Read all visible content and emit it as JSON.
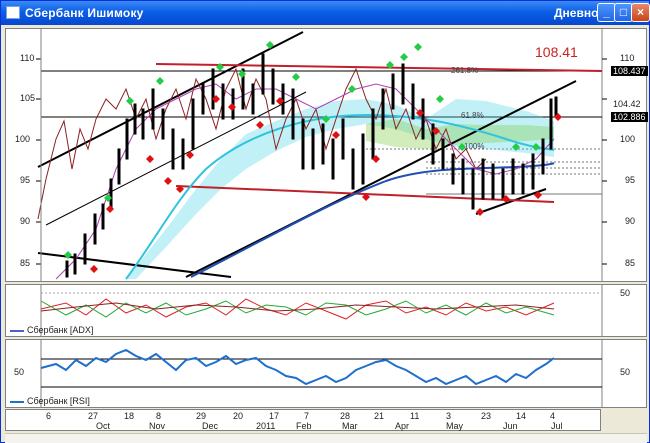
{
  "window": {
    "title": "Сбербанк Ишимоку",
    "timeframe": "Дневной",
    "buttons": {
      "minimize": "_",
      "maximize": "□",
      "close": "×"
    }
  },
  "price_pane": {
    "price_axis": [
      "110",
      "105",
      "100",
      "95",
      "90",
      "85"
    ],
    "price_box_1": "108.437",
    "price_box_2": "104.42",
    "price_box_3": "102.886",
    "big_label": "108.41",
    "fib_labels": [
      "261.8%",
      "61.8%",
      "100%"
    ]
  },
  "adx_pane": {
    "axis_label": "50",
    "legend": "Сбербанк [ADX]"
  },
  "rsi_pane": {
    "left_label": "50",
    "axis_label": "50",
    "legend": "Сбербанк [RSI]"
  },
  "x_axis": {
    "days": [
      "6",
      "27",
      "18",
      "8",
      "29",
      "20",
      "17",
      "7",
      "28",
      "21",
      "11",
      "3",
      "23",
      "14",
      "4"
    ],
    "months": [
      "Oct",
      "Nov",
      "Dec",
      "2011",
      "Feb",
      "Mar",
      "Apr",
      "May",
      "Jun",
      "Jul"
    ]
  },
  "colors": {
    "title_bar": "#0a5ee6",
    "channel_lines": "#000000",
    "resistance": "#c0202a",
    "cloud": "#40c8e0",
    "moving_average": "#1f4fb5",
    "up_marker": "#22cc44",
    "down_marker": "#dd1111"
  }
}
